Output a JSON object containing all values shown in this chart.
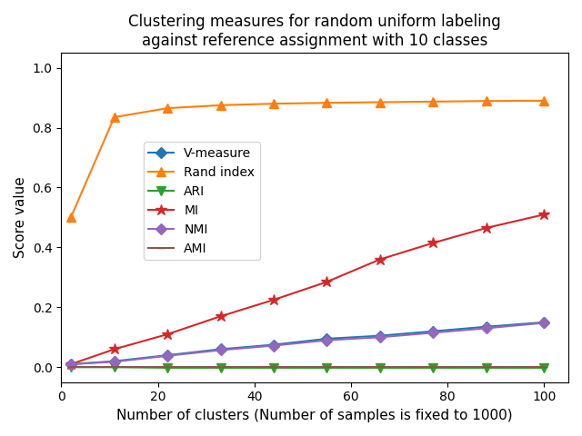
{
  "title": "Clustering measures for random uniform labeling\nagainst reference assignment with 10 classes",
  "xlabel": "Number of clusters (Number of samples is fixed to 1000)",
  "ylabel": "Score value",
  "n_clusters": [
    2,
    11,
    22,
    33,
    44,
    55,
    66,
    77,
    88,
    100
  ],
  "v_measure": [
    0.01,
    0.02,
    0.04,
    0.06,
    0.075,
    0.095,
    0.105,
    0.12,
    0.135,
    0.15
  ],
  "rand_index": [
    0.5,
    0.835,
    0.865,
    0.875,
    0.88,
    0.883,
    0.885,
    0.887,
    0.889,
    0.89
  ],
  "ari": [
    0.0,
    0.0,
    -0.002,
    -0.002,
    -0.002,
    -0.002,
    -0.002,
    -0.002,
    -0.002,
    -0.002
  ],
  "mi": [
    0.01,
    0.06,
    0.11,
    0.17,
    0.225,
    0.285,
    0.36,
    0.415,
    0.465,
    0.51
  ],
  "nmi": [
    0.01,
    0.018,
    0.038,
    0.057,
    0.072,
    0.09,
    0.1,
    0.115,
    0.13,
    0.148
  ],
  "ami": [
    0.0,
    0.0,
    0.0,
    0.0,
    0.0,
    0.0,
    0.0,
    0.0,
    0.0,
    0.0
  ],
  "v_measure_color": "#1f77b4",
  "rand_index_color": "#ff7f0e",
  "ari_color": "#2ca02c",
  "mi_color": "#d62728",
  "nmi_color": "#9467bd",
  "ami_color": "#8c564b",
  "ylim": [
    -0.05,
    1.05
  ],
  "xlim": [
    0,
    105
  ]
}
